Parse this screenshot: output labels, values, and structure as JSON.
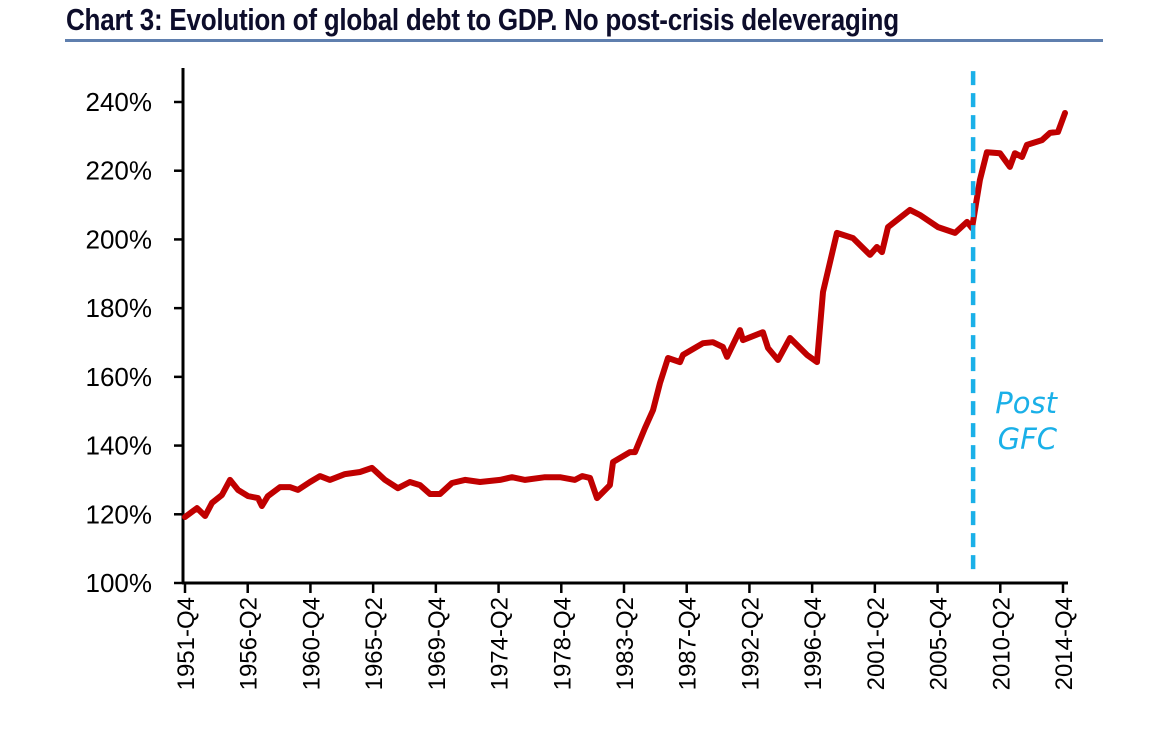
{
  "chart_data": {
    "type": "line",
    "title": "Chart 3: Evolution of global debt to GDP. No post-crisis deleveraging",
    "xlabel": "",
    "ylabel": "",
    "ylim": [
      100,
      240
    ],
    "xlim": [
      1951.75,
      2014.75
    ],
    "yticks": [
      100,
      120,
      140,
      160,
      180,
      200,
      220,
      240
    ],
    "ytick_labels": [
      "100%",
      "120%",
      "140%",
      "160%",
      "180%",
      "200%",
      "220%",
      "240%"
    ],
    "xtick_labels": [
      "1951-Q4",
      "1956-Q2",
      "1960-Q4",
      "1965-Q2",
      "1969-Q4",
      "1974-Q2",
      "1978-Q4",
      "1983-Q2",
      "1987-Q4",
      "1992-Q2",
      "1996-Q4",
      "2001-Q2",
      "2005-Q4",
      "2010-Q2",
      "2014-Q4"
    ],
    "xtick_values": [
      1951.75,
      1956.25,
      1960.75,
      1965.25,
      1969.75,
      1974.25,
      1978.75,
      1983.25,
      1987.75,
      1992.25,
      1996.75,
      2001.25,
      2005.75,
      2010.25,
      2014.75
    ],
    "grid": false,
    "series": [
      {
        "name": "Global debt to GDP",
        "color": "#c00000",
        "x": [
          1951.75,
          1952.61,
          1953.19,
          1953.69,
          1954.4,
          1954.98,
          1955.55,
          1956.27,
          1956.99,
          1957.27,
          1957.7,
          1958.57,
          1959.28,
          1959.86,
          1960.72,
          1961.44,
          1962.15,
          1963.23,
          1964.31,
          1965.17,
          1966.1,
          1967.03,
          1967.89,
          1968.61,
          1969.33,
          1970.05,
          1970.91,
          1971.84,
          1972.92,
          1974.35,
          1975.21,
          1976.15,
          1977.58,
          1978.66,
          1979.73,
          1980.24,
          1980.81,
          1981.31,
          1982.24,
          1982.46,
          1983.68,
          1984.04,
          1984.76,
          1985.33,
          1985.83,
          1986.41,
          1987.27,
          1987.48,
          1988.92,
          1989.63,
          1990.35,
          1990.64,
          1991.57,
          1991.79,
          1993.22,
          1993.58,
          1994.3,
          1995.16,
          1996.38,
          1997.1,
          1997.53,
          1998.53,
          1999.68,
          2000.9,
          2001.4,
          2001.76,
          2002.19,
          2003.77,
          2004.49,
          2005.78,
          2007.0,
          2007.86,
          2008.22,
          2008.79,
          2009.29,
          2010.23,
          2010.94,
          2011.3,
          2011.81,
          2012.16,
          2013.24,
          2013.82,
          2014.39,
          2014.89
        ],
        "y": [
          119.2,
          121.8,
          119.5,
          123.3,
          125.6,
          130.0,
          127.1,
          125.3,
          124.7,
          122.4,
          125.3,
          127.9,
          127.9,
          127.1,
          129.4,
          131.1,
          130.0,
          131.7,
          132.3,
          133.5,
          130.0,
          127.6,
          129.4,
          128.5,
          125.9,
          125.9,
          129.1,
          130.0,
          129.4,
          130.0,
          130.8,
          130.0,
          130.8,
          130.8,
          130.0,
          131.1,
          130.6,
          124.7,
          128.5,
          135.2,
          138.1,
          138.1,
          145.1,
          150.3,
          158.2,
          165.5,
          164.3,
          166.4,
          169.8,
          170.1,
          168.7,
          165.8,
          173.6,
          170.7,
          173.0,
          168.4,
          164.9,
          171.3,
          166.4,
          164.3,
          184.7,
          201.9,
          200.4,
          195.5,
          197.8,
          196.3,
          203.6,
          208.6,
          207.1,
          203.6,
          201.9,
          205.1,
          203.3,
          217.3,
          225.4,
          225.1,
          221.1,
          225.1,
          224.0,
          227.5,
          228.9,
          231.0,
          231.3,
          236.8
        ]
      }
    ],
    "annotations": [
      {
        "type": "vline",
        "x": 2008.3,
        "y_range": [
          104,
          249
        ],
        "color": "#1ab0e8",
        "style": "dashed",
        "label_line1": "Post",
        "label_line2": "GFC"
      }
    ]
  }
}
